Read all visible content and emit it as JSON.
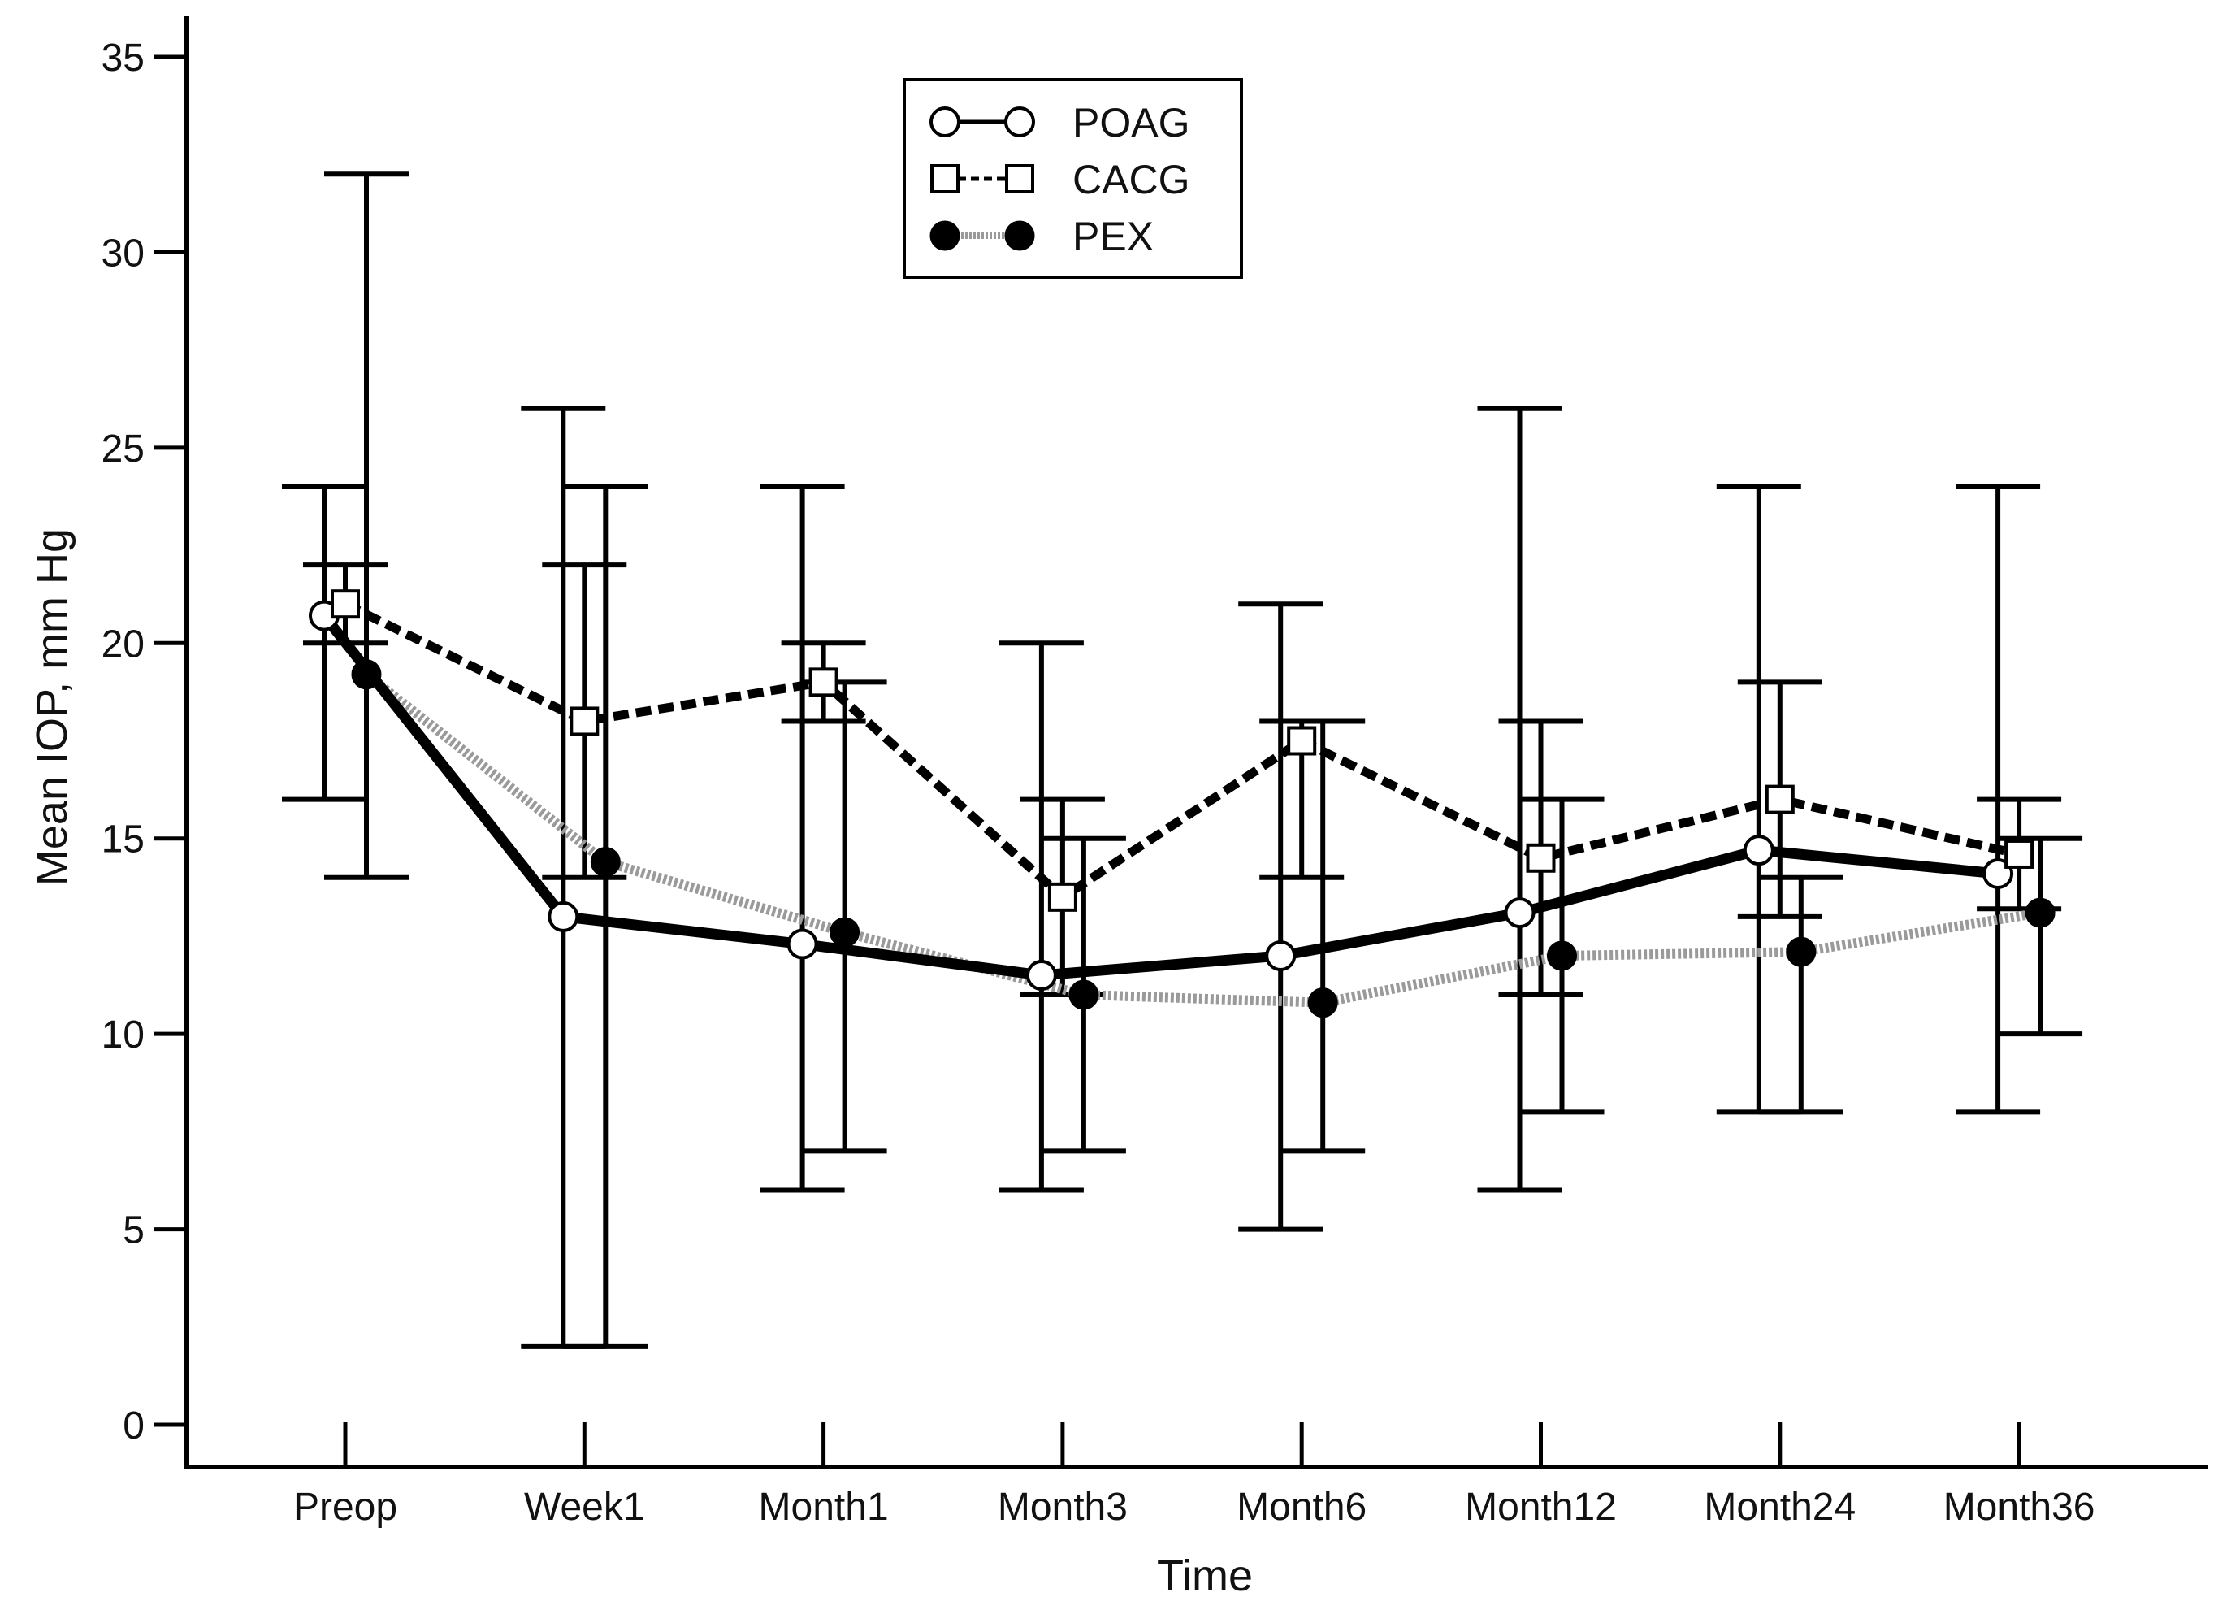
{
  "chart_data": {
    "type": "line",
    "title": "",
    "xlabel": "Time",
    "ylabel": "Mean IOP, mm Hg",
    "ylim": [
      0,
      35
    ],
    "yticks": [
      0,
      5,
      10,
      15,
      20,
      25,
      30,
      35
    ],
    "grid": false,
    "legend_position": "top-center",
    "categories": [
      "Preop",
      "Week1",
      "Month1",
      "Month3",
      "Month6",
      "Month12",
      "Month24",
      "Month36"
    ],
    "series": [
      {
        "name": "POAG",
        "marker": "open-circle",
        "line": "solid",
        "color": "#000000",
        "values": [
          20.7,
          13.0,
          12.3,
          11.5,
          12.0,
          13.1,
          14.7,
          14.1
        ],
        "err_low": [
          16,
          2,
          6,
          6,
          5,
          6,
          8,
          8
        ],
        "err_high": [
          24,
          26,
          24,
          20,
          21,
          26,
          24,
          24
        ]
      },
      {
        "name": "CACG",
        "marker": "open-square",
        "line": "dashed",
        "color": "#000000",
        "values": [
          21.0,
          18.0,
          19.0,
          13.5,
          17.5,
          14.5,
          16.0,
          14.6
        ],
        "err_low": [
          20,
          14,
          18,
          11,
          14,
          11,
          13,
          13.2
        ],
        "err_high": [
          22,
          22,
          20,
          16,
          18,
          18,
          19,
          16
        ]
      },
      {
        "name": "PEX",
        "marker": "filled-circle",
        "line": "dotted-gray",
        "color": "#9a9a9a",
        "values": [
          19.2,
          14.4,
          12.6,
          11.0,
          10.8,
          12.0,
          12.1,
          13.1
        ],
        "err_low": [
          14,
          2,
          7,
          7,
          7,
          8,
          8,
          10
        ],
        "err_high": [
          32,
          24,
          19,
          15,
          18,
          16,
          14,
          15
        ]
      }
    ]
  }
}
